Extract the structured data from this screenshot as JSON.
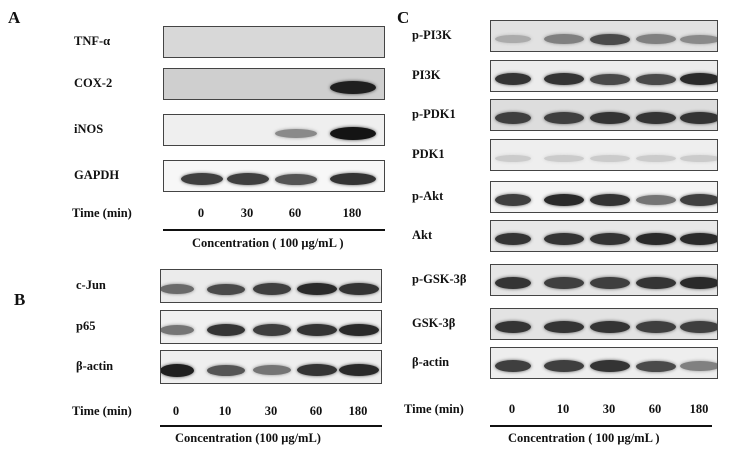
{
  "panels": {
    "A": {
      "letter": "A",
      "blots": [
        {
          "label": "TNF-α",
          "bg": "#d8d8d8",
          "bands": [
            0,
            0,
            0,
            0
          ]
        },
        {
          "label": "COX-2",
          "bg": "#cfcfcf",
          "bands": [
            0,
            0,
            0,
            0.95
          ]
        },
        {
          "label": "iNOS",
          "bg": "#efefef",
          "bands": [
            0,
            0,
            0.45,
            1.0
          ]
        },
        {
          "label": "GAPDH",
          "bg": "#f7f7f7",
          "bands": [
            0.8,
            0.8,
            0.7,
            0.85
          ]
        }
      ],
      "time_label": "Time (min)",
      "times": [
        "0",
        "30",
        "60",
        "180"
      ],
      "concentration": "Concentration ( 100 μg/mL )"
    },
    "B": {
      "letter": "B",
      "blots": [
        {
          "label": "c-Jun",
          "bg": "#ebebeb",
          "bands": [
            0.6,
            0.75,
            0.8,
            0.9,
            0.85
          ]
        },
        {
          "label": "p65",
          "bg": "#f0f0f0",
          "bands": [
            0.55,
            0.85,
            0.8,
            0.85,
            0.9
          ]
        },
        {
          "label": "β-actin",
          "bg": "#efefef",
          "bands": [
            0.95,
            0.7,
            0.55,
            0.85,
            0.9
          ]
        }
      ],
      "time_label": "Time (min)",
      "times": [
        "0",
        "10",
        "30",
        "60",
        "180"
      ],
      "concentration": "Concentration (100 μg/mL)"
    },
    "C": {
      "letter": "C",
      "blots": [
        {
          "label": "p-PI3K",
          "bg": "#e2e2e2",
          "bands": [
            0.3,
            0.5,
            0.75,
            0.5,
            0.45
          ]
        },
        {
          "label": "PI3K",
          "bg": "#ececec",
          "bands": [
            0.85,
            0.85,
            0.75,
            0.75,
            0.9
          ]
        },
        {
          "label": "p-PDK1",
          "bg": "#dddddd",
          "bands": [
            0.8,
            0.8,
            0.85,
            0.85,
            0.85
          ]
        },
        {
          "label": "PDK1",
          "bg": "#eeeeee",
          "bands": [
            0.15,
            0.15,
            0.15,
            0.15,
            0.15
          ]
        },
        {
          "label": "p-Akt",
          "bg": "#f4f4f4",
          "bands": [
            0.8,
            0.9,
            0.85,
            0.55,
            0.8
          ]
        },
        {
          "label": "Akt",
          "bg": "#e8e8e8",
          "bands": [
            0.85,
            0.85,
            0.85,
            0.9,
            0.9
          ]
        },
        {
          "label": "p-GSK-3β",
          "bg": "#e6e6e6",
          "bands": [
            0.85,
            0.8,
            0.8,
            0.85,
            0.9
          ]
        },
        {
          "label": "GSK-3β",
          "bg": "#e3e3e3",
          "bands": [
            0.85,
            0.85,
            0.85,
            0.8,
            0.8
          ]
        },
        {
          "label": "β-actin",
          "bg": "#eeeeee",
          "bands": [
            0.8,
            0.8,
            0.85,
            0.75,
            0.5
          ]
        }
      ],
      "time_label": "Time (min)",
      "times": [
        "0",
        "10",
        "30",
        "60",
        "180"
      ],
      "concentration": "Concentration ( 100 μg/mL )"
    }
  }
}
